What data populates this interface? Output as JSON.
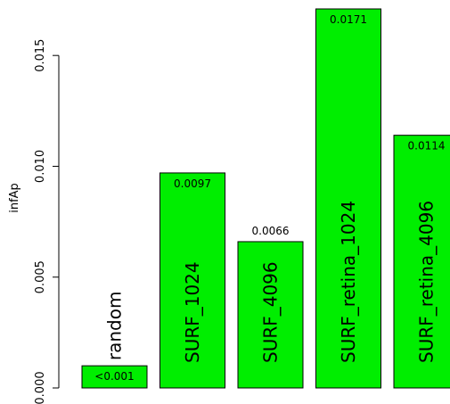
{
  "chart_data": {
    "type": "bar",
    "ylabel": "infAp",
    "ylim": [
      0,
      0.0171
    ],
    "yticks": [
      0.0,
      0.005,
      0.01,
      0.015
    ],
    "ytick_labels": [
      "0.000",
      "0.005",
      "0.010",
      "0.015"
    ],
    "bar_color": "#00ee00",
    "categories": [
      "random",
      "SURF_1024",
      "SURF_4096",
      "SURF_retina_1024",
      "SURF_retina_4096"
    ],
    "values": [
      0.001,
      0.0097,
      0.0066,
      0.0171,
      0.0114
    ],
    "value_labels": [
      "<0.001",
      "0.0097",
      "0.0066",
      "0.0171",
      "0.0114"
    ]
  }
}
